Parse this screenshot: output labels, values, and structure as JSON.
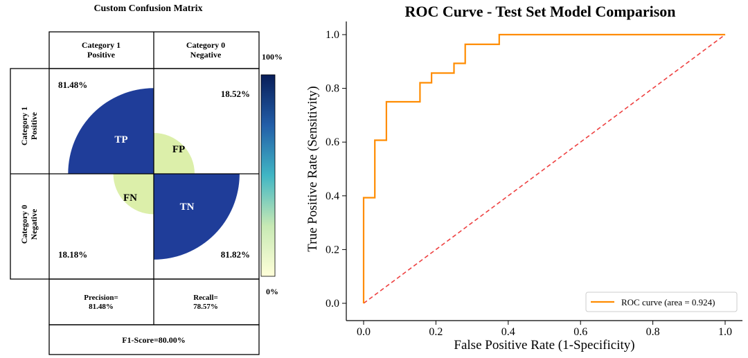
{
  "chart_data": [
    {
      "type": "confusion-matrix",
      "title": "Custom Confusion Matrix",
      "column_headers": [
        {
          "line1": "Category 1",
          "line2": "Positive"
        },
        {
          "line1": "Category 0",
          "line2": "Negative"
        }
      ],
      "row_headers": [
        {
          "line1": "Category 1",
          "line2": "Positive"
        },
        {
          "line1": "Category 0",
          "line2": "Negative"
        }
      ],
      "cells": {
        "tp": {
          "label": "TP",
          "percent": "81.48%",
          "value": 0.8148
        },
        "fp": {
          "label": "FP",
          "percent": "18.52%",
          "value": 0.1852
        },
        "fn": {
          "label": "FN",
          "percent": "18.18%",
          "value": 0.1818
        },
        "tn": {
          "label": "TN",
          "percent": "81.82%",
          "value": 0.8182
        }
      },
      "precision": {
        "label": "Precision=",
        "value": "81.48%"
      },
      "recall": {
        "label": "Recall=",
        "value": "78.57%"
      },
      "f1": "F1-Score=80.00%",
      "colorbar": {
        "max_label": "100%",
        "min_label": "0%"
      },
      "colors": {
        "high": "#1f3d99",
        "low": "#dcefaa"
      }
    },
    {
      "type": "line",
      "title": "ROC Curve - Test Set Model Comparison",
      "xlabel": "False Positive Rate (1-Specificity)",
      "ylabel": "True Positive Rate (Sensitivity)",
      "xlim": [
        0.0,
        1.0
      ],
      "ylim": [
        0.0,
        1.0
      ],
      "xticks": [
        "0.0",
        "0.2",
        "0.4",
        "0.6",
        "0.8",
        "1.0"
      ],
      "yticks": [
        "0.0",
        "0.2",
        "0.4",
        "0.6",
        "0.8",
        "1.0"
      ],
      "legend": {
        "position": "bottom-right",
        "label": "ROC curve (area = 0.924)"
      },
      "series": [
        {
          "name": "ROC curve (area = 0.924)",
          "color": "#ff8c00",
          "x": [
            0.0,
            0.0,
            0.031,
            0.031,
            0.063,
            0.063,
            0.156,
            0.156,
            0.188,
            0.188,
            0.25,
            0.25,
            0.281,
            0.281,
            0.375,
            0.375,
            1.0
          ],
          "y": [
            0.0,
            0.393,
            0.393,
            0.607,
            0.607,
            0.75,
            0.75,
            0.821,
            0.821,
            0.857,
            0.857,
            0.893,
            0.893,
            0.964,
            0.964,
            1.0,
            1.0
          ]
        },
        {
          "name": "chance",
          "color": "#ee4040",
          "x": [
            0.0,
            1.0
          ],
          "y": [
            0.0,
            1.0
          ]
        }
      ]
    }
  ]
}
